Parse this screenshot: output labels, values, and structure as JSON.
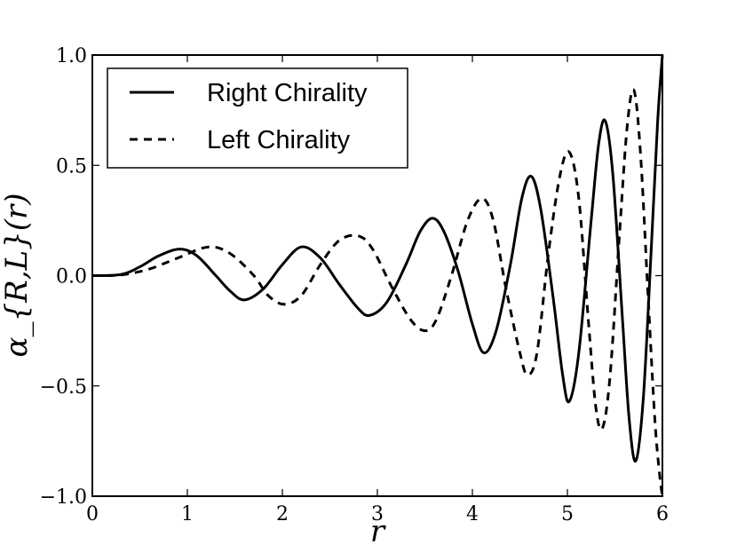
{
  "chart_data": {
    "type": "line",
    "title": "",
    "xlabel": "r",
    "ylabel": "α_{R,L}(r)",
    "xlim": [
      0,
      6
    ],
    "ylim": [
      -1.0,
      1.0
    ],
    "xticks": [
      0,
      1,
      2,
      3,
      4,
      5,
      6
    ],
    "xtick_labels": [
      "0",
      "1",
      "2",
      "3",
      "4",
      "5",
      "6"
    ],
    "yticks": [
      -1.0,
      -0.5,
      0.0,
      0.5,
      1.0
    ],
    "ytick_labels": [
      "−1.0",
      "−0.5",
      "0.0",
      "0.5",
      "1.0"
    ],
    "grid": false,
    "legend_position": "top-left",
    "series": [
      {
        "name": "Right Chirality",
        "style": "solid",
        "color": "#000000",
        "points": [
          [
            0,
            0.0
          ],
          [
            0.3,
            0.005
          ],
          [
            0.5,
            0.04
          ],
          [
            0.7,
            0.09
          ],
          [
            0.92,
            0.12
          ],
          [
            1.1,
            0.09
          ],
          [
            1.3,
            0.0
          ],
          [
            1.45,
            -0.07
          ],
          [
            1.6,
            -0.11
          ],
          [
            1.8,
            -0.06
          ],
          [
            2.0,
            0.05
          ],
          [
            2.2,
            0.13
          ],
          [
            2.4,
            0.08
          ],
          [
            2.6,
            -0.04
          ],
          [
            2.8,
            -0.15
          ],
          [
            2.92,
            -0.18
          ],
          [
            3.1,
            -0.12
          ],
          [
            3.3,
            0.05
          ],
          [
            3.45,
            0.2
          ],
          [
            3.58,
            0.26
          ],
          [
            3.7,
            0.2
          ],
          [
            3.85,
            0.02
          ],
          [
            4.0,
            -0.22
          ],
          [
            4.12,
            -0.35
          ],
          [
            4.25,
            -0.25
          ],
          [
            4.4,
            0.05
          ],
          [
            4.52,
            0.35
          ],
          [
            4.62,
            0.45
          ],
          [
            4.72,
            0.3
          ],
          [
            4.85,
            -0.1
          ],
          [
            4.95,
            -0.45
          ],
          [
            5.02,
            -0.57
          ],
          [
            5.12,
            -0.35
          ],
          [
            5.25,
            0.25
          ],
          [
            5.33,
            0.6
          ],
          [
            5.4,
            0.7
          ],
          [
            5.48,
            0.45
          ],
          [
            5.58,
            -0.2
          ],
          [
            5.65,
            -0.65
          ],
          [
            5.72,
            -0.84
          ],
          [
            5.8,
            -0.55
          ],
          [
            5.88,
            0.1
          ],
          [
            5.95,
            0.7
          ],
          [
            6.0,
            1.0
          ]
        ]
      },
      {
        "name": "Left Chirality",
        "style": "dashed",
        "color": "#000000",
        "points": [
          [
            0,
            0.0
          ],
          [
            0.3,
            0.003
          ],
          [
            0.6,
            0.03
          ],
          [
            0.9,
            0.08
          ],
          [
            1.22,
            0.13
          ],
          [
            1.45,
            0.1
          ],
          [
            1.7,
            0.0
          ],
          [
            1.85,
            -0.09
          ],
          [
            2.02,
            -0.13
          ],
          [
            2.2,
            -0.09
          ],
          [
            2.4,
            0.05
          ],
          [
            2.6,
            0.16
          ],
          [
            2.8,
            0.18
          ],
          [
            2.95,
            0.12
          ],
          [
            3.15,
            -0.05
          ],
          [
            3.35,
            -0.2
          ],
          [
            3.5,
            -0.25
          ],
          [
            3.62,
            -0.2
          ],
          [
            3.78,
            0.0
          ],
          [
            3.95,
            0.25
          ],
          [
            4.1,
            0.35
          ],
          [
            4.22,
            0.25
          ],
          [
            4.35,
            -0.05
          ],
          [
            4.5,
            -0.35
          ],
          [
            4.58,
            -0.45
          ],
          [
            4.68,
            -0.35
          ],
          [
            4.8,
            0.1
          ],
          [
            4.92,
            0.45
          ],
          [
            5.02,
            0.56
          ],
          [
            5.12,
            0.35
          ],
          [
            5.22,
            -0.2
          ],
          [
            5.3,
            -0.6
          ],
          [
            5.37,
            -0.69
          ],
          [
            5.45,
            -0.45
          ],
          [
            5.55,
            0.2
          ],
          [
            5.63,
            0.68
          ],
          [
            5.7,
            0.84
          ],
          [
            5.77,
            0.55
          ],
          [
            5.85,
            -0.1
          ],
          [
            5.92,
            -0.65
          ],
          [
            5.97,
            -0.9
          ],
          [
            6.0,
            -1.0
          ]
        ]
      }
    ]
  }
}
